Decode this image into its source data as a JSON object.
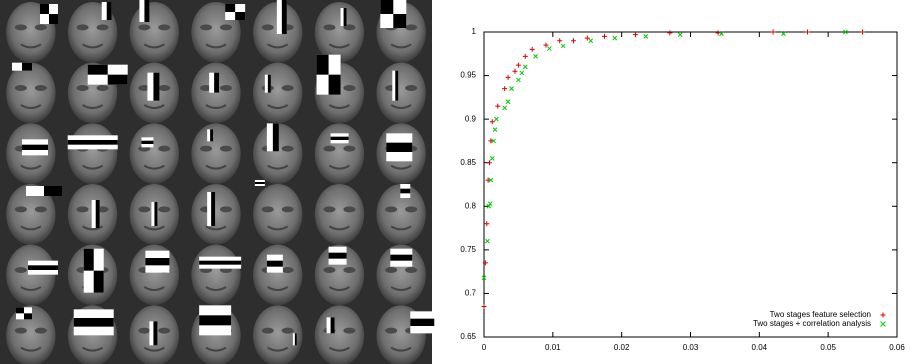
{
  "chart_data": {
    "type": "scatter",
    "series": [
      {
        "name": "Two stages feature selection",
        "color": "#e00000",
        "marker": "plus",
        "x": [
          0,
          0.0002,
          0.0004,
          0.0006,
          0.0008,
          0.001,
          0.0012,
          0.002,
          0.003,
          0.0035,
          0.0045,
          0.005,
          0.006,
          0.007,
          0.009,
          0.011,
          0.013,
          0.015,
          0.0175,
          0.022,
          0.027,
          0.034,
          0.042,
          0.047,
          0.055
        ],
        "values": [
          0.685,
          0.735,
          0.78,
          0.83,
          0.85,
          0.875,
          0.897,
          0.915,
          0.935,
          0.948,
          0.955,
          0.962,
          0.972,
          0.98,
          0.985,
          0.99,
          0.99,
          0.993,
          0.995,
          0.997,
          0.999,
          0.999,
          1,
          1,
          1
        ]
      },
      {
        "name": "Two stages + correlation analysis",
        "color": "#00cc00",
        "marker": "cross",
        "x": [
          0,
          0.0005,
          0.0007,
          0.0009,
          0.001,
          0.0012,
          0.0014,
          0.0016,
          0.0018,
          0.003,
          0.0035,
          0.004,
          0.005,
          0.0055,
          0.006,
          0.0075,
          0.0095,
          0.0115,
          0.0155,
          0.019,
          0.0235,
          0.0285,
          0.0345,
          0.0435,
          0.0525
        ],
        "values": [
          0.718,
          0.76,
          0.8,
          0.803,
          0.83,
          0.855,
          0.875,
          0.888,
          0.9,
          0.913,
          0.92,
          0.935,
          0.945,
          0.953,
          0.96,
          0.972,
          0.981,
          0.984,
          0.99,
          0.993,
          0.995,
          0.997,
          0.998,
          0.998,
          1
        ]
      }
    ],
    "xlim": [
      0,
      0.06
    ],
    "xticks": [
      0,
      0.01,
      0.02,
      0.03,
      0.04,
      0.05,
      0.06
    ],
    "ylim": [
      0.65,
      1
    ],
    "yticks": [
      0.65,
      0.7,
      0.75,
      0.8,
      0.85,
      0.9,
      0.95,
      1
    ],
    "grid": false,
    "legend": "lower right"
  }
}
